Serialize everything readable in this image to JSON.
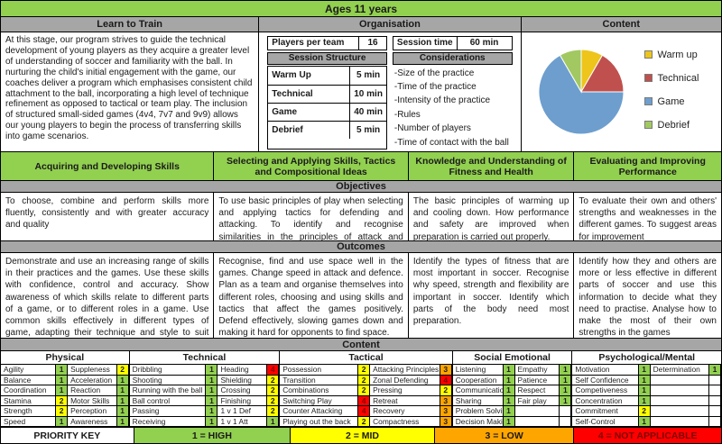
{
  "banner": {
    "title": "Ages 11 years"
  },
  "learn_to_train": {
    "title": "Learn to Train",
    "body": "At this stage, our program strives to guide the technical development of young players as they acquire a greater level of understanding of soccer and familiarity with the ball. In nurturing the child's initial engagement with the game, our coaches deliver a program which emphasises consistent child attachment to the ball, incorporating a high level of technique refinement as opposed to tactical or team play. The inclusion of structured small-sided games (4v4, 7v7 and 9v9) allows our young players to begin the process of transferring skills into game scenarios."
  },
  "organisation": {
    "title": "Organisation",
    "players_label": "Players per team",
    "players_value": "16",
    "session_time_label": "Session time",
    "session_time_value": "60 min",
    "structure_title": "Session Structure",
    "structure": [
      {
        "label": "Warm Up",
        "value": "5 min"
      },
      {
        "label": "Technical",
        "value": "10 min"
      },
      {
        "label": "Game",
        "value": "40 min"
      },
      {
        "label": "Debrief",
        "value": "5 min"
      }
    ],
    "considerations_title": "Considerations",
    "considerations": [
      "-Size of the practice",
      "-Time of the practice",
      "-Intensity of the practice",
      "-Rules",
      "-Number of players",
      "-Time of contact with the ball"
    ]
  },
  "content_panel": {
    "title": "Content"
  },
  "chart_data": {
    "type": "pie",
    "title": "Content",
    "labels": [
      "Warm up",
      "Technical",
      "Game",
      "Debrief"
    ],
    "values": [
      5,
      10,
      40,
      5
    ],
    "unit": "min",
    "colors": [
      "#edc51b",
      "#c0504d",
      "#6d9ece",
      "#a2c861"
    ],
    "legend_position": "right",
    "start_angle_deg": -90,
    "direction": "clockwise"
  },
  "skills": {
    "headers": [
      "Acquiring and Developing Skills",
      "Selecting and Applying Skills, Tactics and Compositional Ideas",
      "Knowledge and Understanding of Fitness and Health",
      "Evaluating and Improving Performance"
    ],
    "objectives_title": "Objectives",
    "objectives": [
      "To choose, combine and perform skills more fluently, consistently and with greater accuracy and quality",
      "To use basic principles of play when selecting and applying tactics for defending and attacking. To identify and recognise similarities in the principles of attack and defence.",
      "The basic principles of warming up and cooling down. How performance and safety are improved when preparation is carried out properly.",
      "To evaluate their own and others' strengths and weaknesses in the different games. To suggest areas for improvement"
    ],
    "outcomes_title": "Outcomes",
    "outcomes": [
      "Demonstrate and use an increasing range of skills in their practices and the games. Use these skills with confidence, control and accuracy. Show awareness of which skills relate to different parts of a game, or to different roles in a game. Use common skills effectively in different types of game, adapting their technique and style to suit the needs of the game",
      "Recognise, find and use space well in the games. Change speed in attack and defence. Plan as a team and organise themselves into different roles, choosing and using skills and tactics that affect the games positively. Defend effectively, slowing games down and making it hard for opponents to find space.",
      "Identify the types of fitness that are most important in soccer. Recognise why speed, strength and flexibility are important in soccer. Identify which parts of the body need most preparation.",
      "Identify how they and others are more or less effective in different parts of soccer and use this information to decide what they need to practise. Analyse how to make the most of their own strengths in the games"
    ]
  },
  "content_table": {
    "title": "Content",
    "columns": [
      {
        "label": "Physical",
        "rows": [
          [
            [
              "Agility",
              1
            ],
            [
              "Suppleness",
              2
            ]
          ],
          [
            [
              "Balance",
              1
            ],
            [
              "Acceleration",
              1
            ]
          ],
          [
            [
              "Coordination",
              1
            ],
            [
              "Reaction",
              1
            ]
          ],
          [
            [
              "Stamina",
              2
            ],
            [
              "Motor Skills",
              1
            ]
          ],
          [
            [
              "Strength",
              2
            ],
            [
              "Perception",
              1
            ]
          ],
          [
            [
              "Speed",
              1
            ],
            [
              "Awareness",
              1
            ]
          ]
        ]
      },
      {
        "label": "Technical",
        "rows": [
          [
            [
              "Dribbling",
              1
            ],
            [
              "Heading",
              4
            ]
          ],
          [
            [
              "Shooting",
              1
            ],
            [
              "Shielding",
              2
            ]
          ],
          [
            [
              "Running with the ball",
              1
            ],
            [
              "Crossing",
              2
            ]
          ],
          [
            [
              "Ball control",
              1
            ],
            [
              "Finishing",
              2
            ]
          ],
          [
            [
              "Passing",
              1
            ],
            [
              "1 v 1 Def",
              2
            ]
          ],
          [
            [
              "Receiving",
              1
            ],
            [
              "1 v 1 Att",
              1
            ]
          ]
        ]
      },
      {
        "label": "Tactical",
        "rows": [
          [
            [
              "Possession",
              2
            ],
            [
              "Attacking Principles",
              3
            ]
          ],
          [
            [
              "Transition",
              2
            ],
            [
              "Zonal Defending",
              4
            ]
          ],
          [
            [
              "Combinations",
              2
            ],
            [
              "Pressing",
              2
            ]
          ],
          [
            [
              "Switching Play",
              4
            ],
            [
              "Retreat",
              3
            ]
          ],
          [
            [
              "Counter Attacking",
              4
            ],
            [
              "Recovery",
              3
            ]
          ],
          [
            [
              "Playing out the back",
              2
            ],
            [
              "Compactness",
              3
            ]
          ]
        ]
      },
      {
        "label": "Social Emotional",
        "rows": [
          [
            [
              "Listening",
              1
            ],
            [
              "Empathy",
              1
            ]
          ],
          [
            [
              "Cooperation",
              1
            ],
            [
              "Patience",
              1
            ]
          ],
          [
            [
              "Communication",
              1
            ],
            [
              "Respect",
              1
            ]
          ],
          [
            [
              "Sharing",
              1
            ],
            [
              "Fair play",
              1
            ]
          ],
          [
            [
              "Problem Solving",
              1
            ],
            [
              "",
              null
            ]
          ],
          [
            [
              "Decision Making",
              1
            ],
            [
              "",
              null
            ]
          ]
        ]
      },
      {
        "label": "Psychological/Mental",
        "rows": [
          [
            [
              "Motivation",
              1
            ],
            [
              "Determination",
              1
            ]
          ],
          [
            [
              "Self Confidence",
              1
            ],
            [
              "",
              null
            ]
          ],
          [
            [
              "Competiveness",
              1
            ],
            [
              "",
              null
            ]
          ],
          [
            [
              "Concentration",
              1
            ],
            [
              "",
              null
            ]
          ],
          [
            [
              "Commitment",
              2
            ],
            [
              "",
              null
            ]
          ],
          [
            [
              "Self-Control",
              1
            ],
            [
              "",
              null
            ]
          ]
        ]
      }
    ]
  },
  "priority_key": {
    "label": "PRIORITY KEY",
    "items": [
      {
        "text": "1 = HIGH",
        "level": 1
      },
      {
        "text": "2 = MID",
        "level": 2
      },
      {
        "text": "3 = LOW",
        "level": 3
      },
      {
        "text": "4 = NOT APPLICABLE",
        "level": 4
      }
    ]
  },
  "colors": {
    "banner_green": "#92d050",
    "header_gray": "#a6a6a6",
    "p1": "#92d050",
    "p2": "#ffff00",
    "p3": "#ffa500",
    "p4": "#ff0000"
  }
}
